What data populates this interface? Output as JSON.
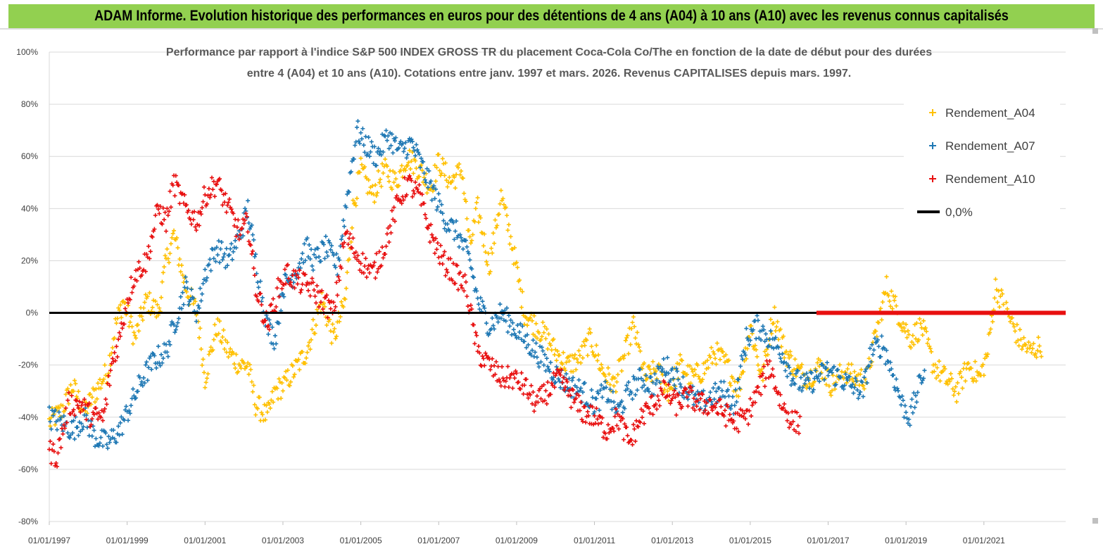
{
  "header": {
    "banner_title": "ADAM Informe. Evolution historique des performances en euros pour des détentions de 4 ans (A04) à 10 ans (A10) avec les revenus connus capitalisés"
  },
  "colors": {
    "banner_bg": "#92d050",
    "a04": "#ffc000",
    "a07": "#1f78b4",
    "a10": "#e81010",
    "zero_line": "#000000",
    "grid": "#d9d9d9"
  },
  "chart_data": {
    "type": "scatter",
    "title_line1": "Performance par rapport à l'indice S&P 500 INDEX GROSS TR  du placement Coca-Cola Co/The en fonction de la date de début pour des durées",
    "title_line2": "entre 4 (A04) et 10 ans (A10). Cotations entre janv. 1997 et mars. 2026. Revenus CAPITALISES depuis mars. 1997.",
    "x_start_year": 1997,
    "x_end_year": 2023.1,
    "x_ticks": [
      "01/01/1997",
      "01/01/1999",
      "01/01/2001",
      "01/01/2003",
      "01/01/2005",
      "01/01/2007",
      "01/01/2009",
      "01/01/2011",
      "01/01/2013",
      "01/01/2015",
      "01/01/2017",
      "01/01/2019",
      "01/01/2021"
    ],
    "x_tick_years": [
      1997,
      1999,
      2001,
      2003,
      2005,
      2007,
      2009,
      2011,
      2013,
      2015,
      2017,
      2019,
      2021
    ],
    "ylim": [
      -80,
      100
    ],
    "y_ticks": [
      "100%",
      "80%",
      "60%",
      "40%",
      "20%",
      "0%",
      "-20%",
      "-40%",
      "-60%",
      "-80%"
    ],
    "y_tick_values": [
      100,
      80,
      60,
      40,
      20,
      0,
      -20,
      -40,
      -60,
      -80
    ],
    "marker": "+",
    "series": [
      {
        "name": "Rendement_A04",
        "color": "#ffc000",
        "x": [
          1997.0,
          1997.3,
          1997.6,
          1997.9,
          1998.2,
          1998.5,
          1998.7,
          1998.9,
          1999.2,
          1999.5,
          1999.8,
          2000.0,
          2000.2,
          2000.5,
          2000.8,
          2001.0,
          2001.3,
          2001.6,
          2001.9,
          2002.1,
          2002.3,
          2002.6,
          2002.8,
          2003.0,
          2003.3,
          2003.6,
          2003.8,
          2004.0,
          2004.3,
          2004.6,
          2004.8,
          2005.0,
          2005.3,
          2005.6,
          2005.9,
          2006.2,
          2006.5,
          2006.8,
          2007.0,
          2007.3,
          2007.6,
          2007.8,
          2008.0,
          2008.3,
          2008.6,
          2008.9,
          2009.2,
          2009.5,
          2009.8,
          2010.0,
          2010.3,
          2010.6,
          2010.9,
          2011.2,
          2011.5,
          2011.8,
          2012.0,
          2012.3,
          2012.6,
          2012.9,
          2013.2,
          2013.5,
          2013.8,
          2014.1,
          2014.4,
          2014.7,
          2015.0,
          2015.3,
          2015.6,
          2015.9,
          2016.2,
          2016.5,
          2016.8,
          2017.1,
          2017.4,
          2017.7,
          2018.0,
          2018.2,
          2018.5,
          2018.8,
          2019.1,
          2019.4,
          2019.7,
          2020.0,
          2020.3,
          2020.6,
          2020.9,
          2021.1,
          2021.3,
          2021.6,
          2021.9,
          2022.2,
          2022.5
        ],
        "y": [
          -42,
          -38,
          -28,
          -38,
          -30,
          -22,
          -5,
          5,
          -10,
          5,
          0,
          20,
          30,
          10,
          0,
          -25,
          -5,
          -15,
          -20,
          -20,
          -35,
          -40,
          -30,
          -28,
          -22,
          -15,
          -5,
          5,
          -10,
          5,
          40,
          55,
          45,
          55,
          50,
          60,
          55,
          48,
          58,
          50,
          55,
          25,
          40,
          18,
          45,
          25,
          0,
          -5,
          -10,
          -15,
          -20,
          -18,
          -10,
          -22,
          -28,
          -15,
          -5,
          -25,
          -22,
          -30,
          -20,
          -25,
          -22,
          -15,
          -20,
          -30,
          -5,
          -25,
          0,
          -15,
          -22,
          -25,
          -20,
          -28,
          -22,
          -25,
          -25,
          -10,
          10,
          0,
          -10,
          -5,
          -20,
          -25,
          -30,
          -20,
          -25,
          -15,
          10,
          0,
          -10,
          -15,
          -12
        ]
      },
      {
        "name": "Rendement_A07",
        "color": "#1f78b4",
        "x": [
          1997.0,
          1997.3,
          1997.6,
          1997.9,
          1998.2,
          1998.5,
          1998.8,
          1999.1,
          1999.4,
          1999.7,
          2000.0,
          2000.2,
          2000.5,
          2000.8,
          2001.0,
          2001.3,
          2001.6,
          2001.9,
          2002.1,
          2002.3,
          2002.6,
          2002.8,
          2003.0,
          2003.3,
          2003.6,
          2003.8,
          2004.1,
          2004.4,
          2004.7,
          2004.9,
          2005.1,
          2005.4,
          2005.7,
          2006.0,
          2006.3,
          2006.6,
          2006.9,
          2007.2,
          2007.5,
          2007.8,
          2008.0,
          2008.3,
          2008.6,
          2008.9,
          2009.2,
          2009.5,
          2009.8,
          2010.1,
          2010.4,
          2010.7,
          2011.0,
          2011.3,
          2011.6,
          2011.9,
          2012.2,
          2012.5,
          2012.8,
          2013.1,
          2013.4,
          2013.7,
          2014.0,
          2014.3,
          2014.6,
          2014.9,
          2015.2,
          2015.5,
          2015.8,
          2016.1,
          2016.4,
          2016.7,
          2017.0,
          2017.3,
          2017.6,
          2017.9,
          2018.1,
          2018.4,
          2018.7,
          2018.9,
          2019.1,
          2019.3,
          2019.5
        ],
        "y": [
          -40,
          -42,
          -45,
          -40,
          -48,
          -50,
          -45,
          -35,
          -25,
          -18,
          -15,
          -5,
          10,
          0,
          15,
          25,
          20,
          30,
          40,
          20,
          -5,
          -10,
          10,
          15,
          25,
          20,
          25,
          18,
          50,
          70,
          65,
          60,
          68,
          62,
          65,
          55,
          45,
          35,
          30,
          20,
          5,
          -5,
          0,
          -5,
          -10,
          -15,
          -20,
          -25,
          -28,
          -30,
          -35,
          -30,
          -38,
          -30,
          -25,
          -28,
          -20,
          -25,
          -30,
          -35,
          -32,
          -30,
          -35,
          -10,
          -5,
          -10,
          -15,
          -25,
          -28,
          -25,
          -22,
          -25,
          -28,
          -30,
          -15,
          -12,
          -25,
          -35,
          -40,
          -30,
          -20
        ]
      },
      {
        "name": "Rendement_A10",
        "color": "#e81010",
        "x": [
          1997.0,
          1997.2,
          1997.5,
          1997.8,
          1998.1,
          1998.4,
          1998.6,
          1998.8,
          1999.0,
          1999.2,
          1999.5,
          1999.8,
          2000.0,
          2000.2,
          2000.5,
          2000.8,
          2001.0,
          2001.3,
          2001.6,
          2001.9,
          2002.1,
          2002.3,
          2002.6,
          2002.9,
          2003.1,
          2003.4,
          2003.7,
          2004.0,
          2004.3,
          2004.6,
          2004.8,
          2005.0,
          2005.3,
          2005.6,
          2005.9,
          2006.2,
          2006.5,
          2006.8,
          2007.1,
          2007.4,
          2007.7,
          2008.0,
          2008.3,
          2008.6,
          2008.9,
          2009.2,
          2009.5,
          2009.8,
          2010.1,
          2010.4,
          2010.7,
          2011.0,
          2011.3,
          2011.6,
          2011.9,
          2012.2,
          2012.5,
          2012.8,
          2013.1,
          2013.4,
          2013.7,
          2014.0,
          2014.3,
          2014.6,
          2014.9,
          2015.2,
          2015.5,
          2015.8,
          2016.1,
          2016.3
        ],
        "y": [
          -53,
          -55,
          -35,
          -35,
          -40,
          -40,
          -20,
          -10,
          5,
          15,
          20,
          40,
          35,
          50,
          40,
          35,
          45,
          50,
          40,
          30,
          35,
          10,
          -5,
          10,
          15,
          12,
          10,
          5,
          0,
          30,
          25,
          20,
          15,
          25,
          40,
          50,
          45,
          30,
          20,
          15,
          10,
          -15,
          -20,
          -25,
          -25,
          -28,
          -35,
          -30,
          -25,
          -32,
          -38,
          -40,
          -45,
          -40,
          -50,
          -40,
          -35,
          -30,
          -35,
          -32,
          -35,
          -35,
          -38,
          -42,
          -40,
          -30,
          -20,
          -35,
          -42,
          -42
        ]
      }
    ],
    "flat_red_from": 2016.7,
    "flat_red_to": 2023.1,
    "legend": [
      {
        "label": "Rendement_A04",
        "kind": "marker",
        "color": "#ffc000"
      },
      {
        "label": "Rendement_A07",
        "kind": "marker",
        "color": "#1f78b4"
      },
      {
        "label": "Rendement_A10",
        "kind": "marker",
        "color": "#e81010"
      },
      {
        "label": "0,0%",
        "kind": "line",
        "color": "#000000"
      }
    ]
  }
}
